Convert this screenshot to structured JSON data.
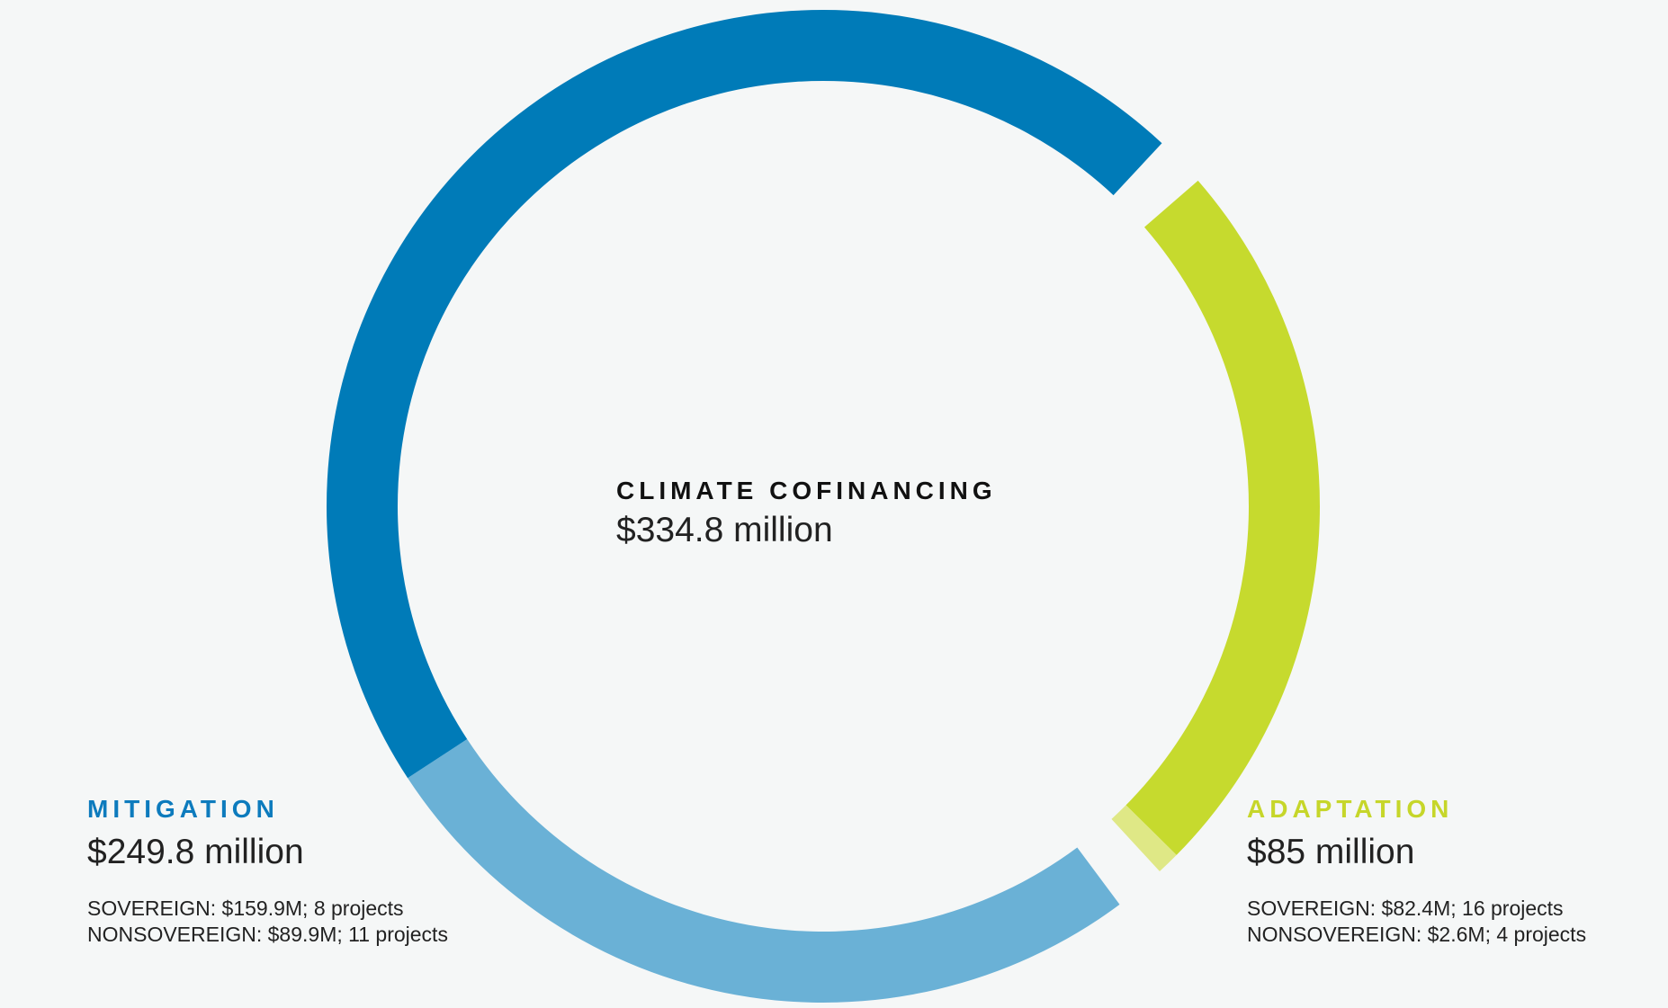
{
  "chart_data": {
    "type": "pie",
    "style": "donut",
    "title": "CLIMATE COFINANCING",
    "total_label": "$334.8 million",
    "total": 334.8,
    "unit": "million USD",
    "colors": {
      "mitigation_sovereign": "#007bb8",
      "mitigation_nonsovereign": "#6ab1d6",
      "adaptation_sovereign": "#c6da2e",
      "adaptation_nonsovereign": "#dfe886",
      "mitigation_label": "#0d7bbd",
      "adaptation_label": "#c6d62a"
    },
    "categories": [
      {
        "key": "mitigation",
        "name": "MITIGATION",
        "total": 249.8,
        "total_label": "$249.8 million",
        "segments": [
          {
            "key": "mitigation_sovereign",
            "value": 159.9,
            "projects": 8
          },
          {
            "key": "mitigation_nonsovereign",
            "value": 89.9,
            "projects": 11
          }
        ],
        "details": [
          "SOVEREIGN: $159.9M; 8 projects",
          "NONSOVEREIGN: $89.9M; 11 projects"
        ]
      },
      {
        "key": "adaptation",
        "name": "ADAPTATION",
        "total": 85,
        "total_label": "$85 million",
        "segments": [
          {
            "key": "adaptation_sovereign",
            "value": 82.4,
            "projects": 16
          },
          {
            "key": "adaptation_nonsovereign",
            "value": 2.6,
            "projects": 4
          }
        ],
        "details": [
          "SOVEREIGN: $82.4M; 16 projects",
          "NONSOVEREIGN: $2.6M; 4 projects"
        ]
      }
    ]
  }
}
